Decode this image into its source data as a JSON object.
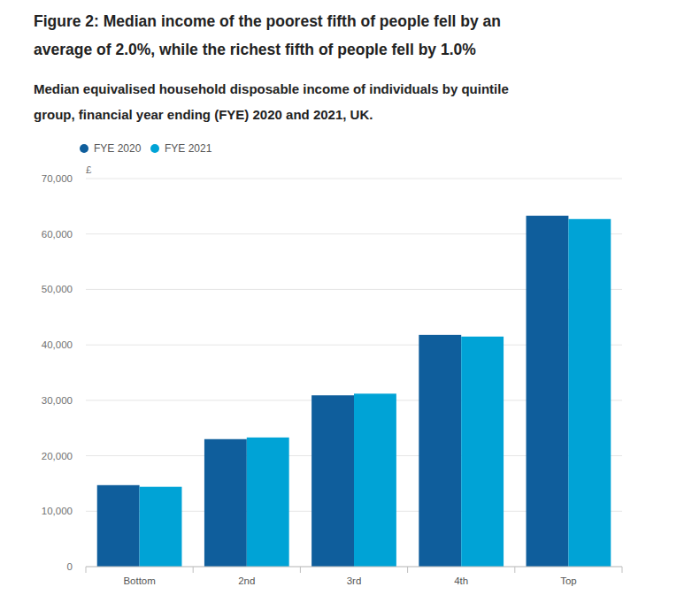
{
  "chart_data": {
    "type": "bar",
    "title": "Figure 2: Median income of the poorest fifth of people fell by an average of 2.0%, while the richest fifth of people fell by 1.0%",
    "subtitle": "Median equivalised household disposable income of individuals by quintile group, financial year ending (FYE) 2020 and 2021, UK.",
    "y_label": "£",
    "categories": [
      "Bottom",
      "2nd",
      "3rd",
      "4th",
      "Top"
    ],
    "series": [
      {
        "name": "FYE 2020",
        "color": "#0f5e9c",
        "values": [
          14700,
          23000,
          30900,
          41800,
          63300
        ]
      },
      {
        "name": "FYE 2021",
        "color": "#00a3d6",
        "values": [
          14400,
          23300,
          31200,
          41500,
          62700
        ]
      }
    ],
    "ylim": [
      0,
      70000
    ],
    "yticks": [
      0,
      {
        "value": 10000,
        "label": "10,000"
      },
      {
        "value": 20000,
        "label": "20,000"
      },
      {
        "value": 30000,
        "label": "30,000"
      },
      {
        "value": 40000,
        "label": "40,000"
      },
      {
        "value": 50000,
        "label": "50,000"
      },
      {
        "value": 60000,
        "label": "60,000"
      },
      {
        "value": 70000,
        "label": "70,000"
      }
    ],
    "grid": true,
    "legend": "top-left"
  }
}
